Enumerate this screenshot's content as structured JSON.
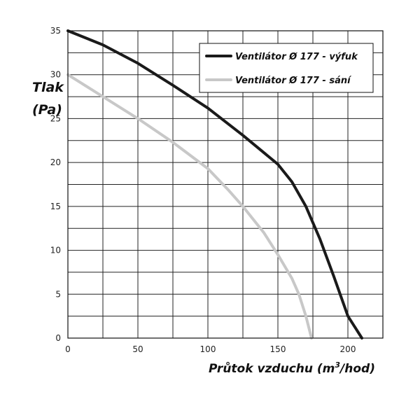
{
  "chart_data": {
    "type": "line",
    "title": "",
    "xlabel": "Průtok vzduchu (m³/hod)",
    "xlabel_main": "Průtok vzduchu (m",
    "xlabel_sup": "3",
    "xlabel_tail": "/hod)",
    "ylabel_line1": "Tlak",
    "ylabel_line2": "(Pa)",
    "xlim": [
      0,
      225
    ],
    "ylim": [
      0,
      35
    ],
    "x_ticks": [
      0,
      50,
      100,
      150,
      200
    ],
    "y_ticks": [
      0,
      5,
      10,
      15,
      20,
      25,
      30,
      35
    ],
    "x_grid_step": 25,
    "y_grid_step": 2.5,
    "grid": true,
    "legend_position": "top-right",
    "series": [
      {
        "name": "Ventilátor Ø 177 - výfuk",
        "color": "#1a1a1a",
        "points": [
          [
            0,
            35
          ],
          [
            25,
            33.4
          ],
          [
            50,
            31.3
          ],
          [
            75,
            28.8
          ],
          [
            100,
            26.2
          ],
          [
            125,
            23.1
          ],
          [
            150,
            19.8
          ],
          [
            160,
            17.8
          ],
          [
            170,
            15.0
          ],
          [
            180,
            11.3
          ],
          [
            190,
            7.0
          ],
          [
            200,
            2.5
          ],
          [
            210,
            0
          ]
        ]
      },
      {
        "name": "Ventilátor Ø 177 - sání",
        "color": "#c8c8c8",
        "points": [
          [
            0,
            30
          ],
          [
            25,
            27.5
          ],
          [
            50,
            25.0
          ],
          [
            75,
            22.3
          ],
          [
            100,
            19.3
          ],
          [
            115,
            16.8
          ],
          [
            125,
            15.0
          ],
          [
            140,
            12.0
          ],
          [
            150,
            9.5
          ],
          [
            160,
            6.8
          ],
          [
            165,
            5.0
          ],
          [
            170,
            2.5
          ],
          [
            174,
            0
          ]
        ]
      }
    ]
  }
}
